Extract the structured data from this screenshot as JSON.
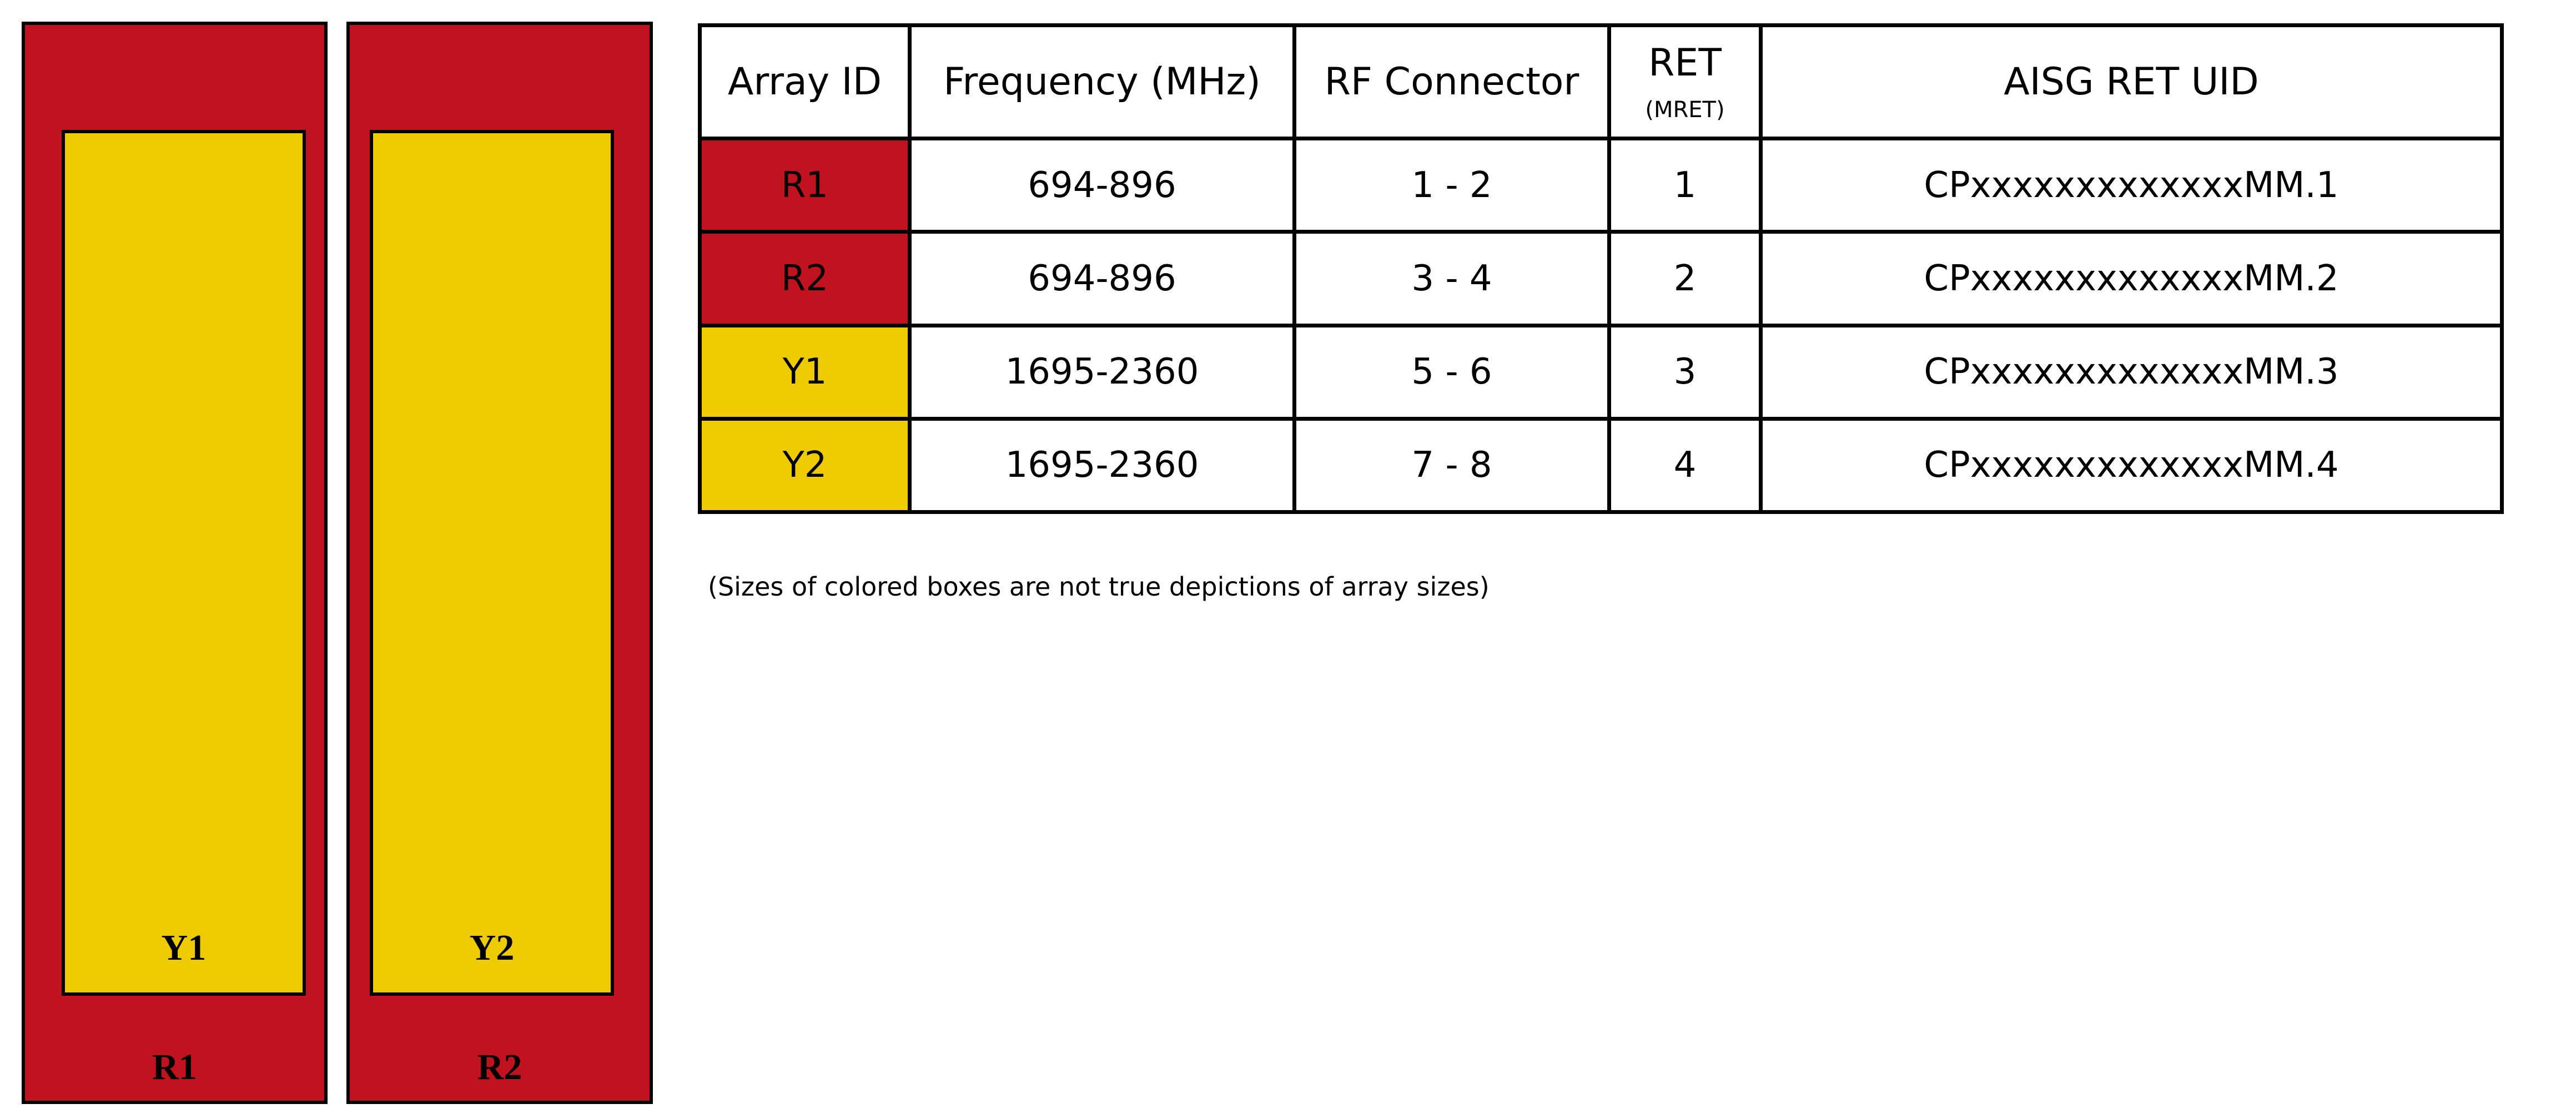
{
  "colors": {
    "red": "#C0131D",
    "yellow": "#EECB00"
  },
  "antenna": [
    {
      "outer_label": "R1",
      "inner_label": "Y1"
    },
    {
      "outer_label": "R2",
      "inner_label": "Y2"
    }
  ],
  "table": {
    "headers": {
      "array_id": "Array ID",
      "frequency": "Frequency (MHz)",
      "rf_connector": "RF Connector",
      "ret": "RET",
      "ret_sub": "(MRET)",
      "uid": "AISG RET UID"
    },
    "rows": [
      {
        "array_id": "R1",
        "color": "red",
        "frequency": "694-896",
        "rf_connector": "1 - 2",
        "ret": "1",
        "uid": "CPxxxxxxxxxxxxxMM.1"
      },
      {
        "array_id": "R2",
        "color": "red",
        "frequency": "694-896",
        "rf_connector": "3 - 4",
        "ret": "2",
        "uid": "CPxxxxxxxxxxxxxMM.2"
      },
      {
        "array_id": "Y1",
        "color": "yellow",
        "frequency": "1695-2360",
        "rf_connector": "5 - 6",
        "ret": "3",
        "uid": "CPxxxxxxxxxxxxxMM.3"
      },
      {
        "array_id": "Y2",
        "color": "yellow",
        "frequency": "1695-2360",
        "rf_connector": "7 - 8",
        "ret": "4",
        "uid": "CPxxxxxxxxxxxxxMM.4"
      }
    ]
  },
  "note": "(Sizes of colored boxes are not true depictions of array sizes)"
}
